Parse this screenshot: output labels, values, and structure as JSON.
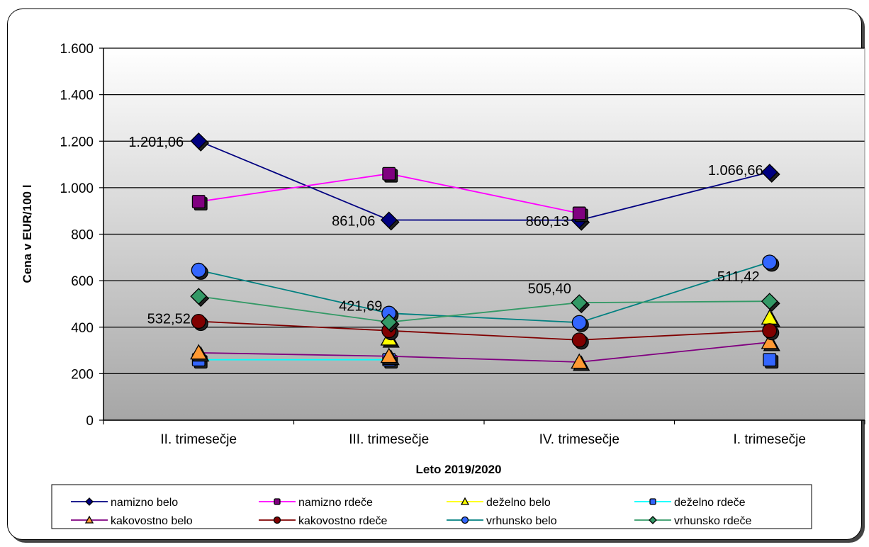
{
  "chart_data": {
    "type": "line",
    "xlabel": "Leto 2019/2020",
    "ylabel": "Cena v EUR/100 l",
    "ylim": [
      0,
      1600
    ],
    "yticks": [
      0,
      200,
      400,
      600,
      800,
      1000,
      1200,
      1400,
      1600
    ],
    "ytick_labels": [
      "0",
      "200",
      "400",
      "600",
      "800",
      "1.000",
      "1.200",
      "1.400",
      "1.600"
    ],
    "categories": [
      "II. trimesečje",
      "III. trimesečje",
      "IV. trimesečje",
      "I. trimesečje"
    ],
    "grid": true,
    "legend_position": "bottom",
    "series": [
      {
        "name": "namizno belo",
        "color": "#000080",
        "marker": "diamond",
        "marker_color": "#000080",
        "values": [
          1201.06,
          861.06,
          860.13,
          1066.66
        ],
        "labels": [
          "1.201,06",
          "861,06",
          "860,13",
          "1.066,66"
        ]
      },
      {
        "name": "namizno rdeče",
        "color": "#ff00ff",
        "marker": "square",
        "marker_color": "#800080",
        "values": [
          940,
          1060,
          890,
          null
        ],
        "labels": []
      },
      {
        "name": "deželno belo",
        "color": "#ffff00",
        "marker": "triangle",
        "marker_color": "#ffff00",
        "values": [
          null,
          350,
          null,
          440
        ],
        "labels": []
      },
      {
        "name": "deželno rdeče",
        "color": "#00ffff",
        "marker": "square",
        "marker_color": "#3366ff",
        "values": [
          260,
          260,
          null,
          260
        ],
        "labels": []
      },
      {
        "name": "kakovostno belo",
        "color": "#800080",
        "marker": "triangle",
        "marker_color": "#ff9933",
        "values": [
          290,
          275,
          250,
          335
        ],
        "labels": []
      },
      {
        "name": "kakovostno rdeče",
        "color": "#800000",
        "marker": "circle",
        "marker_color": "#800000",
        "values": [
          425,
          385,
          345,
          385
        ],
        "labels": []
      },
      {
        "name": "vrhunsko belo",
        "color": "#008080",
        "marker": "circle",
        "marker_color": "#3366ff",
        "values": [
          645,
          460,
          420,
          680
        ],
        "labels": []
      },
      {
        "name": "vrhunsko rdeče",
        "color": "#339966",
        "marker": "diamond",
        "marker_color": "#339966",
        "values": [
          532.52,
          421.69,
          505.4,
          511.42
        ],
        "labels": [
          "532,52",
          "421,69",
          "505,40",
          "511,42"
        ]
      }
    ]
  }
}
